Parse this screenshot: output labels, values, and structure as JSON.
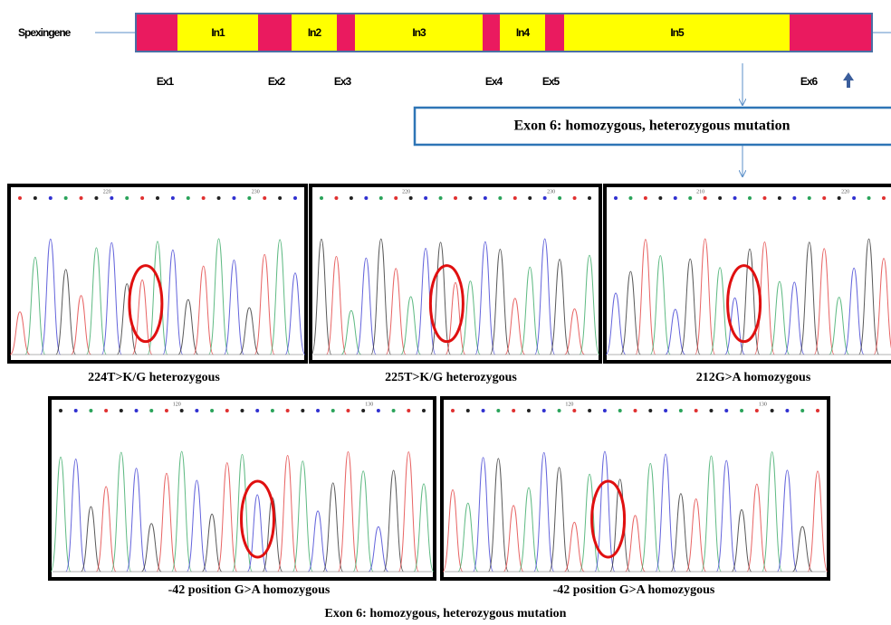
{
  "gene": {
    "label": "Spexingene",
    "introns": [
      "In1",
      "In2",
      "In3",
      "In4",
      "In5"
    ],
    "exons": [
      "Ex1",
      "Ex2",
      "Ex3",
      "Ex4",
      "Ex5",
      "Ex6"
    ]
  },
  "callout": "Exon 6: homozygous,  heterozygous mutation",
  "panels": [
    {
      "caption": "224T>K/G heterozygous",
      "positions": [
        "220",
        "230"
      ]
    },
    {
      "caption": "225T>K/G heterozygous",
      "positions": [
        "220",
        "230"
      ]
    },
    {
      "caption": "212G>A homozygous",
      "positions": [
        "210",
        "220"
      ]
    },
    {
      "caption": "-42 position G>A homozygous",
      "positions": [
        "120",
        "130"
      ]
    },
    {
      "caption": "-42 position G>A  homozygous",
      "positions": [
        "120",
        "130"
      ]
    }
  ],
  "footer": "Exon 6: homozygous,  heterozygous mutation"
}
